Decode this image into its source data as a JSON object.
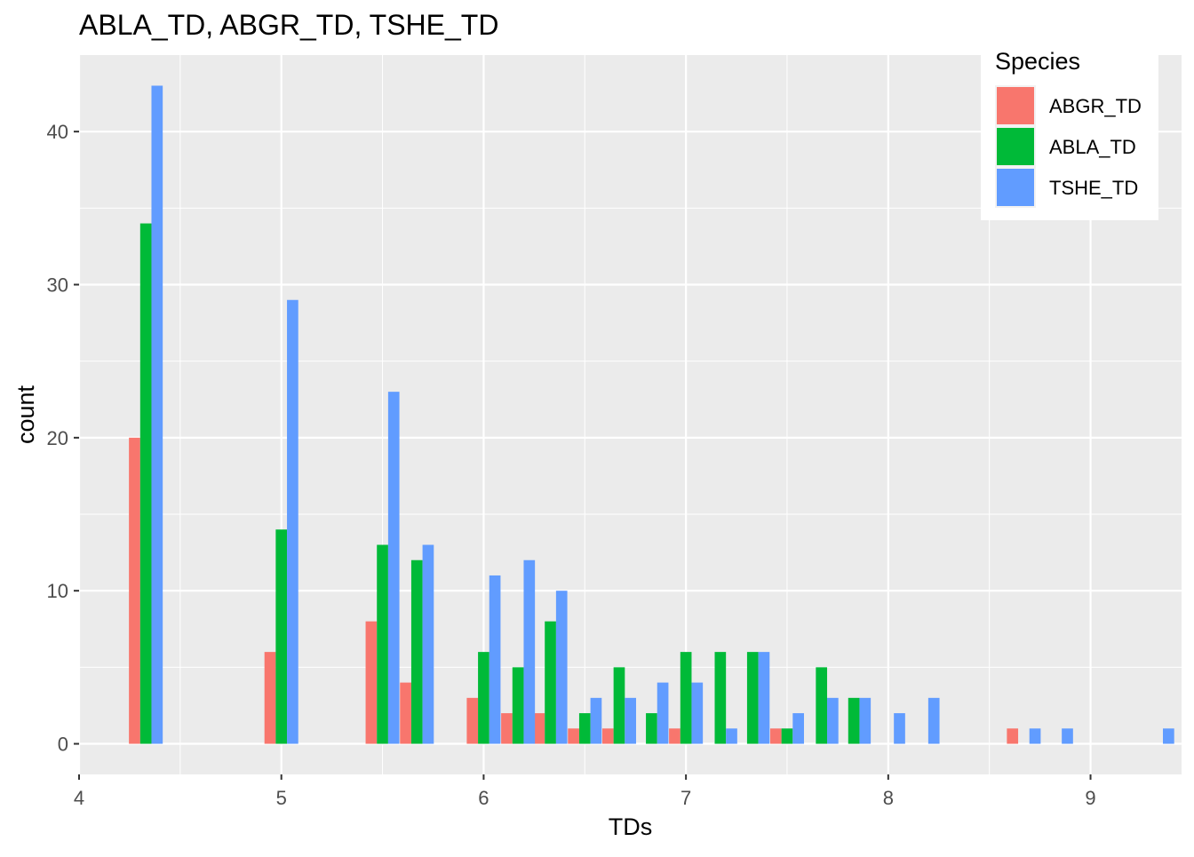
{
  "chart_data": {
    "type": "bar",
    "title": "ABLA_TD, ABGR_TD, TSHE_TD",
    "xlabel": "TDs",
    "ylabel": "count",
    "xlim": [
      4,
      9.45
    ],
    "ylim": [
      -2,
      45
    ],
    "xticks": [
      4,
      5,
      6,
      7,
      8,
      9
    ],
    "yticks": [
      0,
      10,
      20,
      30,
      40
    ],
    "grid": true,
    "legend": {
      "title": "Species",
      "position": "top-right"
    },
    "bin_width": 0.167,
    "series": [
      {
        "name": "ABGR_TD",
        "color": "#F8766D",
        "points": [
          [
            4.33,
            20
          ],
          [
            5,
            6
          ],
          [
            5.5,
            8
          ],
          [
            5.67,
            4
          ],
          [
            6,
            3
          ],
          [
            6.17,
            2
          ],
          [
            6.33,
            2
          ],
          [
            6.5,
            1
          ],
          [
            6.67,
            1
          ],
          [
            7,
            1
          ],
          [
            7.5,
            1
          ],
          [
            8.67,
            1
          ]
        ]
      },
      {
        "name": "ABLA_TD",
        "color": "#00BA38",
        "points": [
          [
            4.33,
            34
          ],
          [
            5,
            14
          ],
          [
            5.5,
            13
          ],
          [
            5.67,
            12
          ],
          [
            6,
            6
          ],
          [
            6.17,
            5
          ],
          [
            6.33,
            8
          ],
          [
            6.5,
            2
          ],
          [
            6.67,
            5
          ],
          [
            6.83,
            2
          ],
          [
            7,
            6
          ],
          [
            7.17,
            6
          ],
          [
            7.33,
            6
          ],
          [
            7.5,
            1
          ],
          [
            7.67,
            5
          ],
          [
            7.83,
            3
          ]
        ]
      },
      {
        "name": "TSHE_TD",
        "color": "#619CFF",
        "points": [
          [
            4.33,
            43
          ],
          [
            5,
            29
          ],
          [
            5.5,
            23
          ],
          [
            5.67,
            13
          ],
          [
            6,
            11
          ],
          [
            6.17,
            12
          ],
          [
            6.33,
            10
          ],
          [
            6.5,
            3
          ],
          [
            6.67,
            3
          ],
          [
            6.83,
            4
          ],
          [
            7,
            4
          ],
          [
            7.17,
            1
          ],
          [
            7.33,
            6
          ],
          [
            7.5,
            2
          ],
          [
            7.67,
            3
          ],
          [
            7.83,
            3
          ],
          [
            8,
            2
          ],
          [
            8.17,
            3
          ],
          [
            8.67,
            1
          ],
          [
            8.83,
            1
          ],
          [
            9.33,
            1
          ]
        ]
      }
    ]
  }
}
